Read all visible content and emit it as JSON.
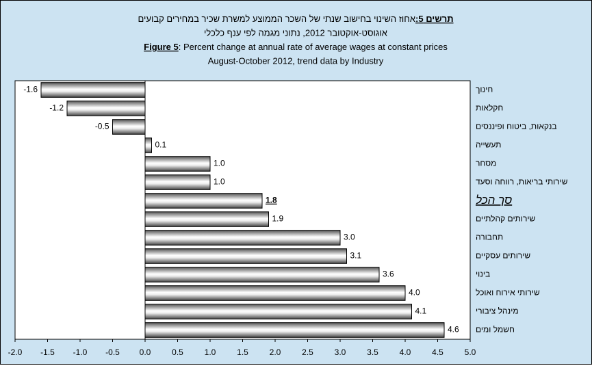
{
  "chart_data": {
    "type": "barh",
    "title_he_label": "תרשים 5:",
    "title_he_text": "אחוז השינוי בחישוב שנתי של השכר הממוצע למשרת שכיר במחירים קבועים",
    "subtitle_he": "אוגוסט-אוקטובר 2012, נתוני מגמה לפי ענף כלכלי",
    "title_en_label": "Figure 5",
    "title_en_text": ": Percent change at annual rate of average wages at constant prices",
    "subtitle_en": "August-October 2012, trend data by Industry",
    "categories": [
      "חינוך",
      "חקלאות",
      "בנקאות, ביטוח ופיננסים",
      "תעשייה",
      "מסחר",
      "שירותי בריאות, רווחה וסעד",
      "סך הכל",
      "שירותים קהלתיים",
      "תחבורה",
      "שירותים עסקיים",
      "בינוי",
      "שירותי אירוח ואוכל",
      "מינהל ציבורי",
      "חשמל ומים"
    ],
    "values": [
      -1.6,
      -1.2,
      -0.5,
      0.1,
      1.0,
      1.0,
      1.8,
      1.9,
      3.0,
      3.1,
      3.6,
      4.0,
      4.1,
      4.6
    ],
    "value_labels": [
      "-1.6",
      "-1.2",
      "-0.5",
      "0.1",
      "1.0",
      "1.0",
      "1.8",
      "1.9",
      "3.0",
      "3.1",
      "3.6",
      "4.0",
      "4.1",
      "4.6"
    ],
    "highlight_index": 6,
    "xlim": [
      -2,
      5
    ],
    "xticks": [
      {
        "value": -2,
        "label": "-2.0"
      },
      {
        "value": -1.5,
        "label": "-1.5"
      },
      {
        "value": -1,
        "label": "-1.0"
      },
      {
        "value": -0.5,
        "label": "-0.5"
      },
      {
        "value": 0,
        "label": "0.0"
      },
      {
        "value": 0.5,
        "label": "0.5"
      },
      {
        "value": 1,
        "label": "1.0"
      },
      {
        "value": 1.5,
        "label": "1.5"
      },
      {
        "value": 2,
        "label": "2.0"
      },
      {
        "value": 2.5,
        "label": "2.5"
      },
      {
        "value": 3,
        "label": "3.0"
      },
      {
        "value": 3.5,
        "label": "3.5"
      },
      {
        "value": 4,
        "label": "4.0"
      },
      {
        "value": 4.5,
        "label": "4.5"
      },
      {
        "value": 5,
        "label": "5.0"
      }
    ],
    "background": "#cce3f2"
  }
}
